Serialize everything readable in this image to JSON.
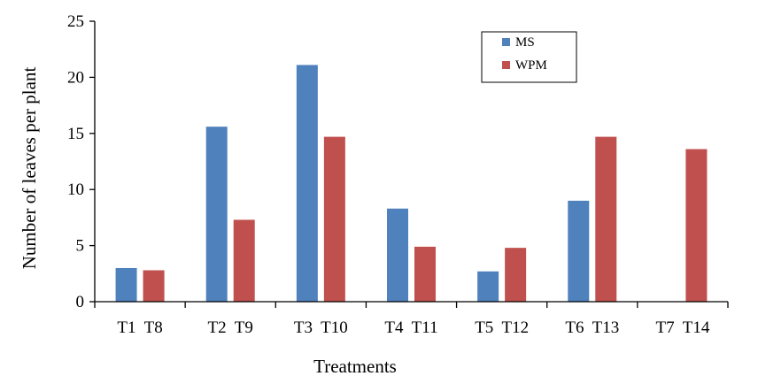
{
  "chart_data": {
    "type": "bar",
    "categories": [
      "T1  T8",
      "T2  T9",
      "T3  T10",
      "T4  T11",
      "T5  T12",
      "T6  T13",
      "T7  T14"
    ],
    "series": [
      {
        "name": "MS",
        "color": "#4f81bd",
        "values": [
          3.0,
          15.6,
          21.1,
          8.3,
          2.7,
          9.0,
          0
        ]
      },
      {
        "name": "WPM",
        "color": "#c0504d",
        "values": [
          2.8,
          7.3,
          14.7,
          4.9,
          4.8,
          14.7,
          13.6
        ]
      }
    ],
    "xlabel": "Treatments",
    "ylabel": "Number of leaves per plant",
    "ylim": [
      0,
      25
    ],
    "yticks": [
      0,
      5,
      10,
      15,
      20,
      25
    ],
    "grid": false,
    "legend_position": "top-right"
  }
}
